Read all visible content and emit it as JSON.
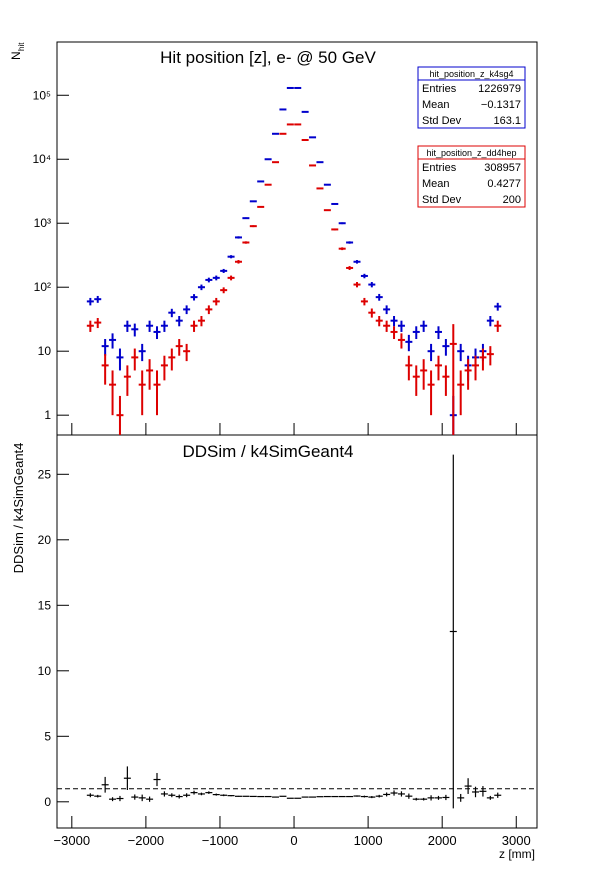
{
  "chart_data": [
    {
      "type": "errorbar",
      "title": "Hit position [z],  e- @ 50 GeV",
      "ylabel": "N",
      "ylabel_sub": "hit",
      "log_y": true,
      "xlim": [
        -3200,
        3280
      ],
      "ylim": [
        0.49,
        680000
      ],
      "yticks": [
        1,
        10,
        {
          "value": 100,
          "label": "10²"
        },
        {
          "value": 1000,
          "label": "10³"
        },
        {
          "value": 10000,
          "label": "10⁴"
        },
        {
          "value": 100000,
          "label": "10⁵"
        }
      ],
      "x": [
        -2750,
        -2650,
        -2550,
        -2450,
        -2350,
        -2250,
        -2150,
        -2050,
        -1950,
        -1850,
        -1750,
        -1650,
        -1550,
        -1450,
        -1350,
        -1250,
        -1150,
        -1050,
        -950,
        -850,
        -750,
        -650,
        -550,
        -450,
        -350,
        -250,
        -150,
        -50,
        50,
        150,
        250,
        350,
        450,
        550,
        650,
        750,
        850,
        950,
        1050,
        1150,
        1250,
        1350,
        1450,
        1550,
        1650,
        1750,
        1850,
        1950,
        2050,
        2150,
        2250,
        2350,
        2450,
        2550,
        2650,
        2750
      ],
      "series": [
        {
          "name": "hit_position_z_k4sg4",
          "color": "#0000cc",
          "values": [
            60,
            65,
            12,
            15,
            8,
            25,
            22,
            10,
            25,
            20,
            25,
            40,
            30,
            45,
            70,
            100,
            130,
            140,
            180,
            300,
            600,
            1200,
            2200,
            4500,
            10000,
            25000,
            60000,
            130000,
            130000,
            55000,
            22000,
            9000,
            4000,
            2000,
            1000,
            500,
            250,
            150,
            110,
            70,
            45,
            30,
            25,
            14,
            20,
            25,
            10,
            20,
            12,
            1,
            10,
            6,
            8,
            10,
            30,
            50
          ],
          "errors": [
            8,
            8,
            3.5,
            4,
            3,
            5,
            5,
            3,
            5,
            4.5,
            5,
            6,
            5.5,
            7,
            8,
            10,
            11,
            12,
            13,
            17,
            25,
            35,
            47,
            67,
            100,
            160,
            245,
            360,
            360,
            235,
            150,
            95,
            63,
            45,
            32,
            22,
            16,
            12,
            10.5,
            8.5,
            7,
            5.5,
            5,
            4,
            4.5,
            5,
            3,
            4.5,
            3.5,
            1,
            3,
            2.5,
            3,
            3,
            5.5,
            7
          ],
          "stats": [
            [
              "Entries",
              1226979
            ],
            [
              "Mean",
              "−0.1317"
            ],
            [
              "Std Dev",
              163.1
            ]
          ]
        },
        {
          "name": "hit_position_z_dd4hep",
          "color": "#dd0000",
          "values": [
            25,
            28,
            6,
            3,
            1,
            4,
            8,
            3,
            5,
            3,
            6,
            8,
            12,
            10,
            25,
            30,
            45,
            60,
            90,
            140,
            250,
            500,
            900,
            1800,
            4000,
            9000,
            25000,
            35000,
            35000,
            20000,
            8000,
            3500,
            1600,
            800,
            400,
            200,
            110,
            60,
            40,
            30,
            25,
            20,
            15,
            6,
            4,
            5,
            3,
            6,
            4,
            13,
            3,
            5,
            6,
            8,
            9,
            25
          ],
          "errors": [
            5,
            5,
            3,
            2,
            1,
            2,
            3,
            2,
            2.5,
            2,
            2.5,
            3,
            3.5,
            3,
            5,
            5.5,
            7,
            8,
            9.5,
            12,
            16,
            22,
            30,
            42,
            63,
            95,
            160,
            190,
            190,
            140,
            90,
            60,
            40,
            28,
            20,
            14,
            10.5,
            8,
            6.5,
            5.5,
            5,
            4.5,
            4,
            2.5,
            2,
            2.5,
            2,
            2.5,
            2,
            13.5,
            2,
            2.5,
            2.5,
            3,
            3,
            5
          ],
          "stats": [
            [
              "Entries",
              308957
            ],
            [
              "Mean",
              0.4277
            ],
            [
              "Std Dev",
              200
            ]
          ]
        }
      ]
    },
    {
      "type": "errorbar",
      "title": "DDSim / k4SimGeant4",
      "ylabel": "DDSim / k4SimGeant4",
      "xlabel": "z [mm]",
      "xlim": [
        -3200,
        3280
      ],
      "ylim": [
        -2,
        28
      ],
      "yticks": [
        0,
        5,
        10,
        15,
        20,
        25
      ],
      "xticks": [
        {
          "value": -3000,
          "label": "−3000"
        },
        {
          "value": -2000,
          "label": "−2000"
        },
        {
          "value": -1000,
          "label": "−1000"
        },
        0,
        1000,
        2000,
        3000
      ],
      "reference_line": 1,
      "x": [
        -2750,
        -2650,
        -2550,
        -2450,
        -2350,
        -2250,
        -2150,
        -2050,
        -1950,
        -1850,
        -1750,
        -1650,
        -1550,
        -1450,
        -1350,
        -1250,
        -1150,
        -1050,
        -950,
        -850,
        -750,
        -650,
        -550,
        -450,
        -350,
        -250,
        -150,
        -50,
        50,
        150,
        250,
        350,
        450,
        550,
        650,
        750,
        850,
        950,
        1050,
        1150,
        1250,
        1350,
        1450,
        1550,
        1650,
        1750,
        1850,
        1950,
        2050,
        2150,
        2250,
        2350,
        2450,
        2550,
        2650,
        2750
      ],
      "series": [
        {
          "color": "#000000",
          "values": [
            0.5,
            0.43,
            1.3,
            0.2,
            0.25,
            1.8,
            0.36,
            0.3,
            0.2,
            1.7,
            0.6,
            0.5,
            0.4,
            0.5,
            0.7,
            0.6,
            0.7,
            0.55,
            0.5,
            0.47,
            0.42,
            0.42,
            0.41,
            0.4,
            0.4,
            0.36,
            0.42,
            0.27,
            0.27,
            0.36,
            0.36,
            0.39,
            0.4,
            0.4,
            0.4,
            0.4,
            0.44,
            0.4,
            0.36,
            0.43,
            0.56,
            0.67,
            0.6,
            0.43,
            0.2,
            0.2,
            0.3,
            0.3,
            0.33,
            13,
            0.3,
            1.2,
            0.75,
            0.8,
            0.3,
            0.5
          ],
          "errors": [
            0.15,
            0.1,
            0.6,
            0.15,
            0.2,
            0.9,
            0.2,
            0.25,
            0.2,
            0.5,
            0.2,
            0.15,
            0.15,
            0.15,
            0.15,
            0.1,
            0.1,
            0.08,
            0.07,
            0.05,
            0.03,
            0.02,
            0.02,
            0.01,
            0.01,
            0.01,
            0.01,
            0.01,
            0.01,
            0.01,
            0.01,
            0.01,
            0.01,
            0.02,
            0.02,
            0.03,
            0.05,
            0.07,
            0.08,
            0.1,
            0.15,
            0.2,
            0.2,
            0.2,
            0.1,
            0.1,
            0.2,
            0.15,
            0.2,
            13.5,
            0.3,
            0.6,
            0.4,
            0.4,
            0.15,
            0.2
          ]
        }
      ]
    }
  ]
}
